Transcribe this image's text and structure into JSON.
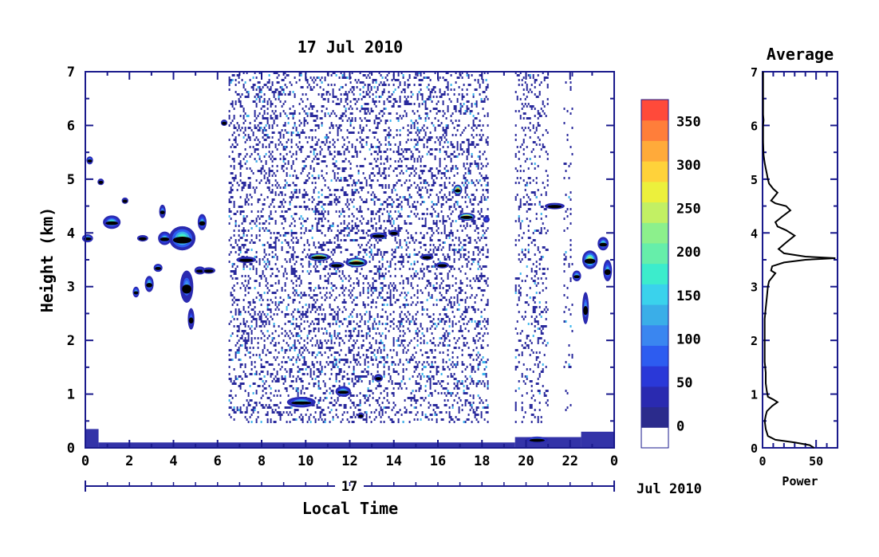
{
  "chart_data": [
    {
      "type": "heatmap",
      "title": "17 Jul 2010",
      "xlabel": "Local Time",
      "ylabel": "Height (km)",
      "x_ticks": [
        "0",
        "2",
        "4",
        "6",
        "8",
        "10",
        "12",
        "14",
        "16",
        "18",
        "20",
        "22",
        "0"
      ],
      "x_range": [
        0,
        24
      ],
      "y_ticks": [
        "0",
        "1",
        "2",
        "3",
        "4",
        "5",
        "6",
        "7"
      ],
      "ylim": [
        0,
        7
      ],
      "date_axis": {
        "day_label": "17",
        "month_label": "Jul 2010"
      },
      "colorbar": {
        "ticks": [
          "0",
          "50",
          "100",
          "150",
          "200",
          "250",
          "300",
          "350"
        ],
        "range": [
          -25,
          375
        ],
        "colors": [
          "#ffffff",
          "#2b2b8c",
          "#2a2ab0",
          "#2a38d8",
          "#2d5cf0",
          "#3a86f0",
          "#3aaee8",
          "#3ad2ec",
          "#3ceccc",
          "#66eeaa",
          "#8cf08c",
          "#c2f064",
          "#ecf03c",
          "#ffd23a",
          "#ffaa3a",
          "#ff7e3a",
          "#ff4a3a"
        ]
      },
      "noise_regions": [
        {
          "t0": 6.5,
          "t1": 18.3,
          "h0": 0.5,
          "h1": 7.0,
          "density": "high"
        },
        {
          "t0": 19.5,
          "t1": 21.0,
          "h0": 0.5,
          "h1": 7.0,
          "density": "medium"
        },
        {
          "t0": 21.7,
          "t1": 22.1,
          "h0": 0.7,
          "h1": 7.0,
          "density": "low"
        }
      ],
      "surface_band": [
        {
          "t0": 0.0,
          "t1": 0.6,
          "h": 0.35
        },
        {
          "t0": 0.6,
          "t1": 19.5,
          "h": 0.1
        },
        {
          "t0": 19.5,
          "t1": 22.5,
          "h": 0.2
        },
        {
          "t0": 22.5,
          "t1": 24.0,
          "h": 0.3
        }
      ],
      "cloud_layers": [
        {
          "t": 0.1,
          "h": 3.9,
          "w": 0.5,
          "d": 0.15,
          "max": 160
        },
        {
          "t": 0.2,
          "h": 5.35,
          "w": 0.3,
          "d": 0.15,
          "max": 140
        },
        {
          "t": 0.7,
          "h": 4.95,
          "w": 0.3,
          "d": 0.12,
          "max": 100
        },
        {
          "t": 1.2,
          "h": 4.2,
          "w": 0.8,
          "d": 0.25,
          "max": 170
        },
        {
          "t": 1.8,
          "h": 4.6,
          "w": 0.3,
          "d": 0.1,
          "max": 110
        },
        {
          "t": 2.3,
          "h": 2.9,
          "w": 0.3,
          "d": 0.2,
          "max": 150
        },
        {
          "t": 2.6,
          "h": 3.9,
          "w": 0.5,
          "d": 0.12,
          "max": 100
        },
        {
          "t": 2.9,
          "h": 3.05,
          "w": 0.4,
          "d": 0.3,
          "max": 160
        },
        {
          "t": 3.3,
          "h": 3.35,
          "w": 0.4,
          "d": 0.15,
          "max": 140
        },
        {
          "t": 3.5,
          "h": 4.4,
          "w": 0.3,
          "d": 0.25,
          "max": 130
        },
        {
          "t": 3.6,
          "h": 3.9,
          "w": 0.6,
          "d": 0.25,
          "max": 150
        },
        {
          "t": 4.4,
          "h": 3.9,
          "w": 1.2,
          "d": 0.45,
          "max": 200
        },
        {
          "t": 4.6,
          "h": 3.0,
          "w": 0.6,
          "d": 0.6,
          "max": 120
        },
        {
          "t": 4.8,
          "h": 2.4,
          "w": 0.3,
          "d": 0.4,
          "max": 90
        },
        {
          "t": 5.3,
          "h": 4.2,
          "w": 0.4,
          "d": 0.3,
          "max": 140
        },
        {
          "t": 5.2,
          "h": 3.3,
          "w": 0.5,
          "d": 0.15,
          "max": 100
        },
        {
          "t": 5.6,
          "h": 3.3,
          "w": 0.6,
          "d": 0.1,
          "max": 110
        },
        {
          "t": 6.3,
          "h": 6.05,
          "w": 0.3,
          "d": 0.1,
          "max": 120
        },
        {
          "t": 7.3,
          "h": 3.5,
          "w": 0.9,
          "d": 0.1,
          "max": 100
        },
        {
          "t": 9.8,
          "h": 0.85,
          "w": 1.3,
          "d": 0.2,
          "max": 160
        },
        {
          "t": 10.6,
          "h": 3.55,
          "w": 1.0,
          "d": 0.15,
          "max": 380
        },
        {
          "t": 11.4,
          "h": 3.4,
          "w": 0.7,
          "d": 0.1,
          "max": 160
        },
        {
          "t": 11.7,
          "h": 1.05,
          "w": 0.7,
          "d": 0.2,
          "max": 160
        },
        {
          "t": 12.3,
          "h": 3.45,
          "w": 1.0,
          "d": 0.18,
          "max": 360
        },
        {
          "t": 12.5,
          "h": 0.6,
          "w": 0.3,
          "d": 0.1,
          "max": 100
        },
        {
          "t": 13.3,
          "h": 1.3,
          "w": 0.4,
          "d": 0.15,
          "max": 120
        },
        {
          "t": 13.3,
          "h": 3.95,
          "w": 0.8,
          "d": 0.12,
          "max": 160
        },
        {
          "t": 14.0,
          "h": 4.0,
          "w": 0.5,
          "d": 0.12,
          "max": 120
        },
        {
          "t": 15.5,
          "h": 3.55,
          "w": 0.6,
          "d": 0.1,
          "max": 120
        },
        {
          "t": 16.2,
          "h": 3.4,
          "w": 0.6,
          "d": 0.12,
          "max": 140
        },
        {
          "t": 16.9,
          "h": 4.8,
          "w": 0.4,
          "d": 0.2,
          "max": 380
        },
        {
          "t": 17.3,
          "h": 4.3,
          "w": 0.8,
          "d": 0.15,
          "max": 380
        },
        {
          "t": 18.2,
          "h": 4.25,
          "w": 0.3,
          "d": 0.08,
          "max": 80
        },
        {
          "t": 20.5,
          "h": 0.15,
          "w": 1.0,
          "d": 0.1,
          "max": 150
        },
        {
          "t": 21.3,
          "h": 4.5,
          "w": 0.9,
          "d": 0.1,
          "max": 120
        },
        {
          "t": 22.3,
          "h": 3.2,
          "w": 0.4,
          "d": 0.2,
          "max": 160
        },
        {
          "t": 22.7,
          "h": 2.6,
          "w": 0.3,
          "d": 0.6,
          "max": 130
        },
        {
          "t": 22.9,
          "h": 3.5,
          "w": 0.7,
          "d": 0.35,
          "max": 250
        },
        {
          "t": 23.5,
          "h": 3.8,
          "w": 0.5,
          "d": 0.25,
          "max": 180
        },
        {
          "t": 23.7,
          "h": 3.3,
          "w": 0.4,
          "d": 0.4,
          "max": 150
        }
      ]
    },
    {
      "type": "line",
      "title": "Average",
      "xlabel": "Power",
      "ylabel": "",
      "x_ticks": [
        "0",
        "50"
      ],
      "xlim": [
        0,
        70
      ],
      "y_ticks": [
        "0",
        "1",
        "2",
        "3",
        "4",
        "5",
        "6",
        "7"
      ],
      "ylim": [
        0,
        7
      ],
      "series": [
        {
          "points": [
            [
              48,
              0.0
            ],
            [
              44,
              0.05
            ],
            [
              30,
              0.1
            ],
            [
              12,
              0.15
            ],
            [
              5,
              0.22
            ],
            [
              3,
              0.35
            ],
            [
              2,
              0.5
            ],
            [
              3,
              0.6
            ],
            [
              4,
              0.68
            ],
            [
              9,
              0.78
            ],
            [
              14,
              0.85
            ],
            [
              10,
              0.9
            ],
            [
              5,
              0.95
            ],
            [
              4,
              1.05
            ],
            [
              3,
              1.2
            ],
            [
              3,
              1.4
            ],
            [
              2,
              1.6
            ],
            [
              2,
              1.8
            ],
            [
              2,
              2.0
            ],
            [
              2,
              2.2
            ],
            [
              2,
              2.4
            ],
            [
              3,
              2.6
            ],
            [
              4,
              2.8
            ],
            [
              5,
              3.0
            ],
            [
              6,
              3.1
            ],
            [
              10,
              3.2
            ],
            [
              12,
              3.25
            ],
            [
              8,
              3.3
            ],
            [
              9,
              3.38
            ],
            [
              20,
              3.45
            ],
            [
              40,
              3.5
            ],
            [
              68,
              3.53
            ],
            [
              40,
              3.56
            ],
            [
              20,
              3.62
            ],
            [
              15,
              3.7
            ],
            [
              22,
              3.82
            ],
            [
              30,
              3.95
            ],
            [
              22,
              4.05
            ],
            [
              14,
              4.12
            ],
            [
              12,
              4.2
            ],
            [
              18,
              4.3
            ],
            [
              26,
              4.42
            ],
            [
              22,
              4.5
            ],
            [
              12,
              4.55
            ],
            [
              8,
              4.6
            ],
            [
              12,
              4.7
            ],
            [
              14,
              4.75
            ],
            [
              10,
              4.82
            ],
            [
              6,
              4.92
            ],
            [
              5,
              5.0
            ],
            [
              4,
              5.1
            ],
            [
              3,
              5.2
            ],
            [
              2,
              5.3
            ],
            [
              1,
              5.45
            ],
            [
              0.5,
              5.7
            ],
            [
              0.5,
              6.0
            ],
            [
              1,
              6.1
            ],
            [
              0.5,
              6.2
            ],
            [
              0.5,
              6.6
            ],
            [
              0.5,
              7.0
            ]
          ]
        }
      ]
    }
  ]
}
